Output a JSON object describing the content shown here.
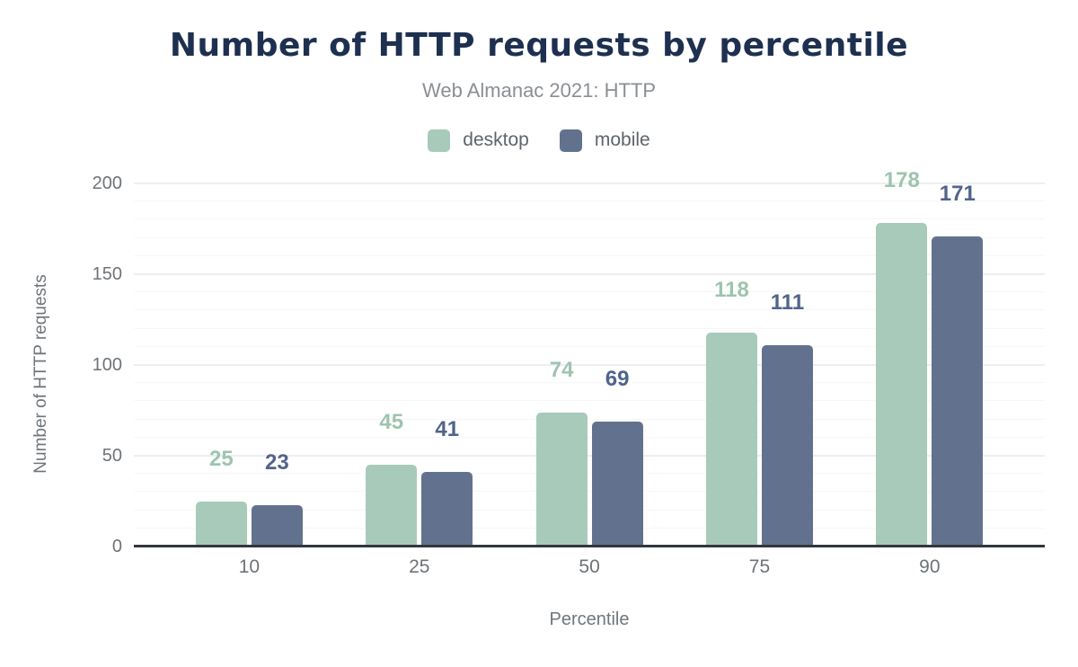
{
  "header": {
    "title": "Number of HTTP requests by percentile",
    "subtitle": "Web Almanac 2021: HTTP"
  },
  "axes": {
    "x_title": "Percentile",
    "y_title": "Number of HTTP requests"
  },
  "palette": {
    "title_text": "#1e3050",
    "subtitle_text": "#8b8f94",
    "axis_text": "#6e7377",
    "axis_line": "#33373d",
    "major_grid": "#eeeef0",
    "minor_grid": "#f7f7f9"
  },
  "chart_data": {
    "type": "bar",
    "title": "Number of HTTP requests by percentile",
    "subtitle": "Web Almanac 2021: HTTP",
    "categories": [
      "10",
      "25",
      "50",
      "75",
      "90"
    ],
    "series": [
      {
        "name": "desktop",
        "values": [
          25,
          45,
          74,
          118,
          178
        ],
        "color": "#a8cabb",
        "label_color": "#9dc4af"
      },
      {
        "name": "mobile",
        "values": [
          23,
          41,
          69,
          111,
          171
        ],
        "color": "#62728e",
        "label_color": "#50648b"
      }
    ],
    "xlabel": "Percentile",
    "ylabel": "Number of HTTP requests",
    "ylim": [
      0,
      200
    ],
    "yticks": [
      0,
      50,
      100,
      150,
      200
    ],
    "minor_grid_step": 10,
    "grid": true,
    "legend_position": "top",
    "value_labels": true
  }
}
